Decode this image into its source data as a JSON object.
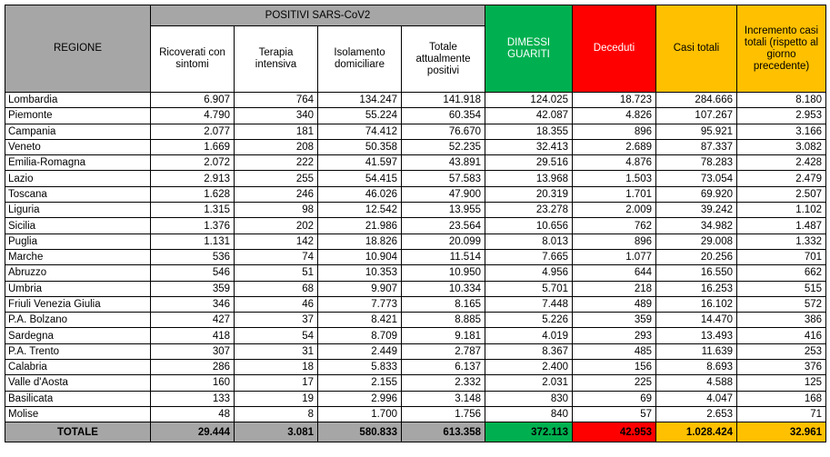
{
  "header": {
    "regione": "REGIONE",
    "positivi": "POSITIVI SARS-CoV2",
    "ricoverati": "Ricoverati con sintomi",
    "terapia": "Terapia intensiva",
    "isolamento": "Isolamento domiciliare",
    "totale_positivi": "Totale attualmente positivi",
    "dimessi": "DIMESSI GUARITI",
    "deceduti": "Deceduti",
    "casi_totali": "Casi totali",
    "incremento": "Incremento casi totali (rispetto al giorno precedente)"
  },
  "colors": {
    "header_gray": "#a6a6a6",
    "dimessi_green": "#00b050",
    "deceduti_red": "#ff0000",
    "casi_orange": "#ffc000"
  },
  "rows": [
    {
      "regione": "Lombardia",
      "ricoverati": "6.907",
      "terapia": "764",
      "isolamento": "134.247",
      "totale": "141.918",
      "dimessi": "124.025",
      "deceduti": "18.723",
      "casi": "284.666",
      "incremento": "8.180"
    },
    {
      "regione": "Piemonte",
      "ricoverati": "4.790",
      "terapia": "340",
      "isolamento": "55.224",
      "totale": "60.354",
      "dimessi": "42.087",
      "deceduti": "4.826",
      "casi": "107.267",
      "incremento": "2.953"
    },
    {
      "regione": "Campania",
      "ricoverati": "2.077",
      "terapia": "181",
      "isolamento": "74.412",
      "totale": "76.670",
      "dimessi": "18.355",
      "deceduti": "896",
      "casi": "95.921",
      "incremento": "3.166"
    },
    {
      "regione": "Veneto",
      "ricoverati": "1.669",
      "terapia": "208",
      "isolamento": "50.358",
      "totale": "52.235",
      "dimessi": "32.413",
      "deceduti": "2.689",
      "casi": "87.337",
      "incremento": "3.082"
    },
    {
      "regione": "Emilia-Romagna",
      "ricoverati": "2.072",
      "terapia": "222",
      "isolamento": "41.597",
      "totale": "43.891",
      "dimessi": "29.516",
      "deceduti": "4.876",
      "casi": "78.283",
      "incremento": "2.428"
    },
    {
      "regione": "Lazio",
      "ricoverati": "2.913",
      "terapia": "255",
      "isolamento": "54.415",
      "totale": "57.583",
      "dimessi": "13.968",
      "deceduti": "1.503",
      "casi": "73.054",
      "incremento": "2.479"
    },
    {
      "regione": "Toscana",
      "ricoverati": "1.628",
      "terapia": "246",
      "isolamento": "46.026",
      "totale": "47.900",
      "dimessi": "20.319",
      "deceduti": "1.701",
      "casi": "69.920",
      "incremento": "2.507"
    },
    {
      "regione": "Liguria",
      "ricoverati": "1.315",
      "terapia": "98",
      "isolamento": "12.542",
      "totale": "13.955",
      "dimessi": "23.278",
      "deceduti": "2.009",
      "casi": "39.242",
      "incremento": "1.102"
    },
    {
      "regione": "Sicilia",
      "ricoverati": "1.376",
      "terapia": "202",
      "isolamento": "21.986",
      "totale": "23.564",
      "dimessi": "10.656",
      "deceduti": "762",
      "casi": "34.982",
      "incremento": "1.487"
    },
    {
      "regione": "Puglia",
      "ricoverati": "1.131",
      "terapia": "142",
      "isolamento": "18.826",
      "totale": "20.099",
      "dimessi": "8.013",
      "deceduti": "896",
      "casi": "29.008",
      "incremento": "1.332"
    },
    {
      "regione": "Marche",
      "ricoverati": "536",
      "terapia": "74",
      "isolamento": "10.904",
      "totale": "11.514",
      "dimessi": "7.665",
      "deceduti": "1.077",
      "casi": "20.256",
      "incremento": "701"
    },
    {
      "regione": "Abruzzo",
      "ricoverati": "546",
      "terapia": "51",
      "isolamento": "10.353",
      "totale": "10.950",
      "dimessi": "4.956",
      "deceduti": "644",
      "casi": "16.550",
      "incremento": "662"
    },
    {
      "regione": "Umbria",
      "ricoverati": "359",
      "terapia": "68",
      "isolamento": "9.907",
      "totale": "10.334",
      "dimessi": "5.701",
      "deceduti": "218",
      "casi": "16.253",
      "incremento": "515"
    },
    {
      "regione": "Friuli Venezia Giulia",
      "ricoverati": "346",
      "terapia": "46",
      "isolamento": "7.773",
      "totale": "8.165",
      "dimessi": "7.448",
      "deceduti": "489",
      "casi": "16.102",
      "incremento": "572"
    },
    {
      "regione": "P.A. Bolzano",
      "ricoverati": "427",
      "terapia": "37",
      "isolamento": "8.421",
      "totale": "8.885",
      "dimessi": "5.226",
      "deceduti": "359",
      "casi": "14.470",
      "incremento": "386"
    },
    {
      "regione": "Sardegna",
      "ricoverati": "418",
      "terapia": "54",
      "isolamento": "8.709",
      "totale": "9.181",
      "dimessi": "4.019",
      "deceduti": "293",
      "casi": "13.493",
      "incremento": "416"
    },
    {
      "regione": "P.A. Trento",
      "ricoverati": "307",
      "terapia": "31",
      "isolamento": "2.449",
      "totale": "2.787",
      "dimessi": "8.367",
      "deceduti": "485",
      "casi": "11.639",
      "incremento": "253"
    },
    {
      "regione": "Calabria",
      "ricoverati": "286",
      "terapia": "18",
      "isolamento": "5.833",
      "totale": "6.137",
      "dimessi": "2.400",
      "deceduti": "156",
      "casi": "8.693",
      "incremento": "376"
    },
    {
      "regione": "Valle d'Aosta",
      "ricoverati": "160",
      "terapia": "17",
      "isolamento": "2.155",
      "totale": "2.332",
      "dimessi": "2.031",
      "deceduti": "225",
      "casi": "4.588",
      "incremento": "125"
    },
    {
      "regione": "Basilicata",
      "ricoverati": "133",
      "terapia": "19",
      "isolamento": "2.996",
      "totale": "3.148",
      "dimessi": "830",
      "deceduti": "69",
      "casi": "4.047",
      "incremento": "168"
    },
    {
      "regione": "Molise",
      "ricoverati": "48",
      "terapia": "8",
      "isolamento": "1.700",
      "totale": "1.756",
      "dimessi": "840",
      "deceduti": "57",
      "casi": "2.653",
      "incremento": "71"
    }
  ],
  "totale": {
    "label": "TOTALE",
    "ricoverati": "29.444",
    "terapia": "3.081",
    "isolamento": "580.833",
    "totale": "613.358",
    "dimessi": "372.113",
    "deceduti": "42.953",
    "casi": "1.028.424",
    "incremento": "32.961"
  }
}
